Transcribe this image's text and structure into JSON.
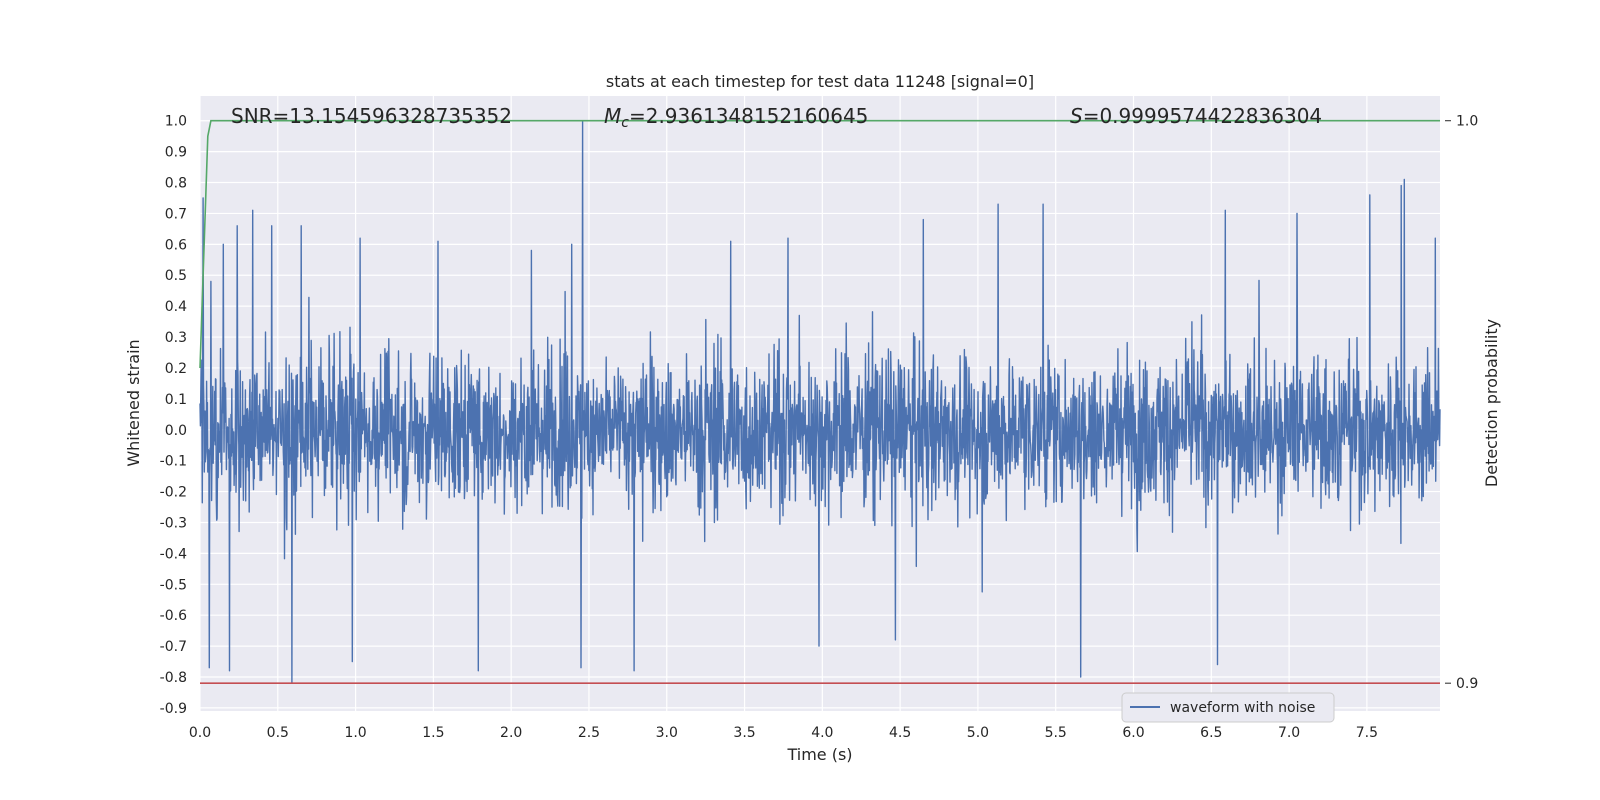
{
  "chart_data": {
    "type": "line",
    "title": "stats at each timestep for test data 11248 [signal=0]",
    "xlabel": "Time (s)",
    "ylabel": "Whitened strain",
    "y2label": "Detection probability",
    "xlim": [
      0.0,
      7.97
    ],
    "ylim": [
      -0.91,
      1.08
    ],
    "y2_ticks": [
      {
        "value": 0.9,
        "label": "0.9"
      },
      {
        "value": 1.0,
        "label": "1.0"
      }
    ],
    "grid": true,
    "legend_position": "lower-center",
    "annotations": {
      "snr_label": "SNR=13.154596328735352",
      "mc_symbol": "M",
      "mc_sub": "c",
      "mc_value": "=2.9361348152160645",
      "s_symbol": "S",
      "s_value": "=0.9999574422836304"
    },
    "series": [
      {
        "name": "waveform with noise",
        "color": "#4c72b0",
        "kind": "noise",
        "x_range": [
          0.0,
          7.97
        ],
        "envelope_typical": [
          -0.3,
          0.3
        ],
        "peaks": [
          {
            "x": 0.02,
            "y": 0.75
          },
          {
            "x": 0.06,
            "y": -0.77
          },
          {
            "x": 0.07,
            "y": 0.48
          },
          {
            "x": 0.15,
            "y": 0.6
          },
          {
            "x": 0.19,
            "y": -0.78
          },
          {
            "x": 0.24,
            "y": 0.66
          },
          {
            "x": 0.34,
            "y": 0.71
          },
          {
            "x": 0.46,
            "y": 0.66
          },
          {
            "x": 0.59,
            "y": -0.82
          },
          {
            "x": 0.65,
            "y": 0.66
          },
          {
            "x": 0.98,
            "y": -0.75
          },
          {
            "x": 1.03,
            "y": 0.62
          },
          {
            "x": 1.53,
            "y": 0.61
          },
          {
            "x": 1.79,
            "y": -0.78
          },
          {
            "x": 2.13,
            "y": 0.58
          },
          {
            "x": 2.39,
            "y": 0.6
          },
          {
            "x": 2.45,
            "y": -0.77
          },
          {
            "x": 2.46,
            "y": 1.0
          },
          {
            "x": 2.79,
            "y": -0.78
          },
          {
            "x": 3.41,
            "y": 0.61
          },
          {
            "x": 3.78,
            "y": 0.62
          },
          {
            "x": 3.98,
            "y": -0.7
          },
          {
            "x": 4.47,
            "y": -0.68
          },
          {
            "x": 4.65,
            "y": 0.68
          },
          {
            "x": 5.13,
            "y": 0.73
          },
          {
            "x": 5.42,
            "y": 0.73
          },
          {
            "x": 5.66,
            "y": -0.8
          },
          {
            "x": 6.54,
            "y": -0.76
          },
          {
            "x": 6.59,
            "y": 0.71
          },
          {
            "x": 7.05,
            "y": 0.7
          },
          {
            "x": 7.52,
            "y": 0.76
          },
          {
            "x": 7.72,
            "y": 0.79
          },
          {
            "x": 7.74,
            "y": 0.81
          },
          {
            "x": 7.94,
            "y": 0.62
          }
        ]
      },
      {
        "name": "",
        "color": "#55a868",
        "kind": "line",
        "points": [
          [
            0.0,
            0.2
          ],
          [
            0.02,
            0.5
          ],
          [
            0.05,
            0.95
          ],
          [
            0.07,
            1.0
          ],
          [
            7.97,
            1.0
          ]
        ]
      },
      {
        "name": "",
        "color": "#c44e52",
        "kind": "line",
        "points": [
          [
            0.0,
            -0.82
          ],
          [
            7.97,
            -0.82
          ]
        ]
      }
    ],
    "legend_label": "waveform with noise"
  }
}
